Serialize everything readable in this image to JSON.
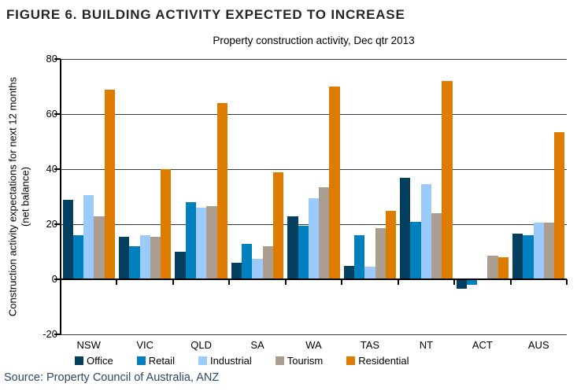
{
  "figure": {
    "title": "FIGURE 6. BUILDING ACTIVITY EXPECTED TO INCREASE",
    "source": "Source: Property Council of Australia, ANZ"
  },
  "chart_data": {
    "type": "bar",
    "title": "Property construction activity, Dec qtr 2013",
    "ylabel_line1": "Construction activity expectations for next 12 months",
    "ylabel_line2": "(net balance)",
    "categories": [
      "NSW",
      "VIC",
      "QLD",
      "SA",
      "WA",
      "TAS",
      "NT",
      "ACT",
      "AUS"
    ],
    "series": [
      {
        "name": "Office",
        "color": "#053F5F",
        "values": [
          29,
          15.5,
          10,
          6,
          23,
          5,
          37,
          -3.5,
          16.5
        ]
      },
      {
        "name": "Retail",
        "color": "#0080BD",
        "values": [
          16,
          12,
          28,
          13,
          19.5,
          16,
          21,
          -2,
          16
        ]
      },
      {
        "name": "Industrial",
        "color": "#9ACBFA",
        "values": [
          30.5,
          16,
          26,
          7.5,
          29.5,
          4.5,
          34.5,
          0,
          20.5
        ]
      },
      {
        "name": "Tourism",
        "color": "#AB9D90",
        "values": [
          23,
          15.5,
          26.5,
          12,
          33.5,
          18.5,
          24,
          8.5,
          20.5
        ]
      },
      {
        "name": "Residential",
        "color": "#DE7C00",
        "values": [
          69,
          40,
          64,
          39,
          70,
          25,
          72,
          8,
          53.5
        ]
      }
    ],
    "ylim": [
      -20,
      80
    ],
    "yticks": [
      80,
      60,
      40,
      20,
      0,
      -20
    ],
    "grid": true,
    "legend_position": "bottom"
  }
}
